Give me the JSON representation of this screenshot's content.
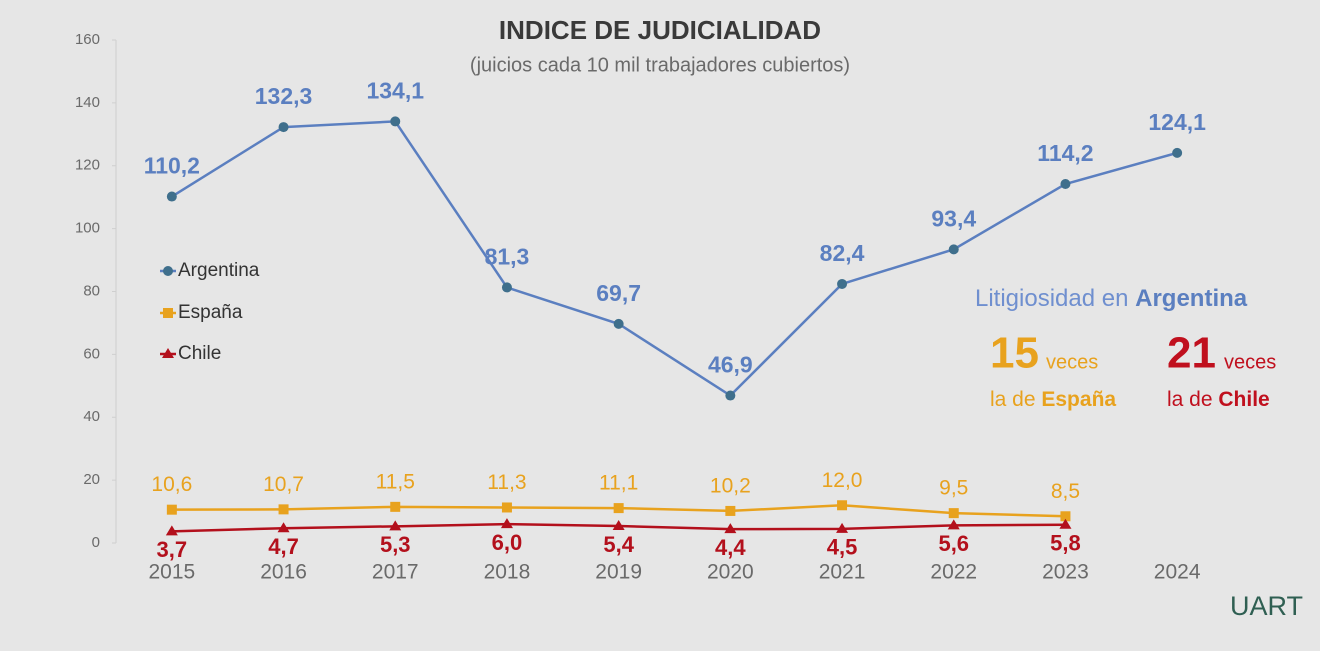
{
  "chart_data": {
    "type": "line",
    "title": "INDICE DE JUDICIALIDAD",
    "subtitle": "(juicios cada 10 mil trabajadores cubiertos)",
    "categories": [
      "2015",
      "2016",
      "2017",
      "2018",
      "2019",
      "2020",
      "2021",
      "2022",
      "2023",
      "2024"
    ],
    "series": [
      {
        "name": "Argentina",
        "color": "#5b7fc0",
        "marker_color": "#3f6f8c",
        "marker": "circle",
        "values": [
          110.2,
          132.3,
          134.1,
          81.3,
          69.7,
          46.9,
          82.4,
          93.4,
          114.2,
          124.1
        ],
        "value_labels": [
          "110,2",
          "132,3",
          "134,1",
          "81,3",
          "69,7",
          "46,9",
          "82,4",
          "93,4",
          "114,2",
          "124,1"
        ]
      },
      {
        "name": "España",
        "color": "#e8a21e",
        "marker_color": "#e8a21e",
        "marker": "square",
        "values": [
          10.6,
          10.7,
          11.5,
          11.3,
          11.1,
          10.2,
          12.0,
          9.5,
          8.5,
          null
        ],
        "value_labels": [
          "10,6",
          "10,7",
          "11,5",
          "11,3",
          "11,1",
          "10,2",
          "12,0",
          "9,5",
          "8,5",
          null
        ]
      },
      {
        "name": "Chile",
        "color": "#b3101c",
        "marker_color": "#b3101c",
        "marker": "triangle",
        "values": [
          3.7,
          4.7,
          5.3,
          6.0,
          5.4,
          4.4,
          4.5,
          5.6,
          5.8,
          null
        ],
        "value_labels": [
          "3,7",
          "4,7",
          "5,3",
          "6,0",
          "5,4",
          "4,4",
          "4,5",
          "5,6",
          "5,8",
          null
        ]
      }
    ],
    "ylim": [
      0,
      160
    ],
    "yticks": [
      0,
      20,
      40,
      60,
      80,
      100,
      120,
      140,
      160
    ],
    "annotation": {
      "headline": [
        "Litigiosidad en ",
        "Argentina"
      ],
      "spain": {
        "number": "15",
        "unit": "veces",
        "text": [
          "la de ",
          "España"
        ]
      },
      "chile": {
        "number": "21",
        "unit": "veces",
        "text": [
          "la de ",
          "Chile"
        ]
      }
    },
    "logo": "UART"
  }
}
